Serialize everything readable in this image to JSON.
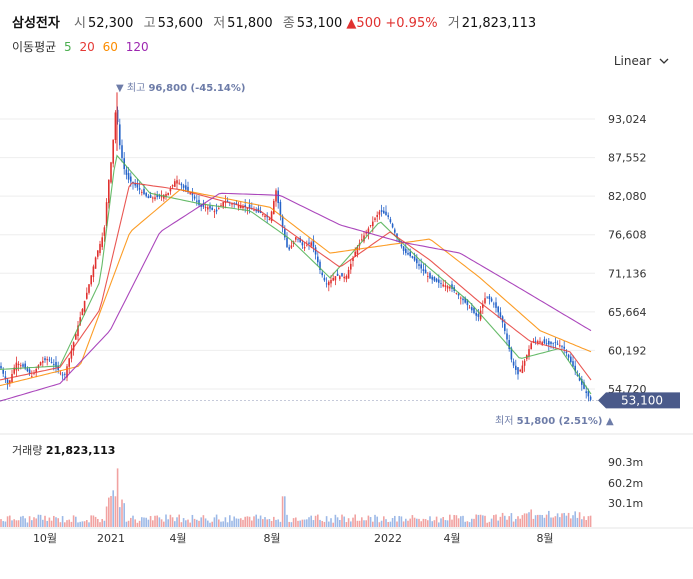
{
  "header": {
    "name": "삼성전자",
    "open_label": "시",
    "open": "52,300",
    "high_label": "고",
    "high": "53,600",
    "low_label": "저",
    "low": "51,800",
    "close_label": "종",
    "close": "53,100",
    "change": "▲500",
    "change_pct": "+0.95%",
    "volume_label": "거",
    "volume": "21,823,113"
  },
  "ma_legend": {
    "label": "이동평균",
    "p1": "5",
    "p2": "20",
    "p3": "60",
    "p4": "120"
  },
  "scale_mode": "Linear",
  "colors": {
    "up": "#e0312f",
    "down": "#2563c9",
    "ma5": "#4caf50",
    "ma20": "#e53935",
    "ma60": "#fb8c00",
    "ma120": "#9c27b0",
    "current_price_bg": "#4a5a8a"
  },
  "chart_data": {
    "type": "candlestick",
    "price_axis": {
      "ticks": [
        93024,
        87552,
        82080,
        76608,
        71136,
        65664,
        60192,
        54720
      ],
      "tick_labels": [
        "93,024",
        "87,552",
        "82,080",
        "76,608",
        "71,136",
        "65,664",
        "60,192",
        "54,720"
      ]
    },
    "x_axis": {
      "tick_labels": [
        "10월",
        "2021",
        "4월",
        "8월",
        "2022",
        "4월",
        "8월"
      ]
    },
    "close_path": [
      [
        0,
        58000
      ],
      [
        8,
        55200
      ],
      [
        16,
        58500
      ],
      [
        24,
        57800
      ],
      [
        32,
        56500
      ],
      [
        40,
        58500
      ],
      [
        48,
        59000
      ],
      [
        56,
        57800
      ],
      [
        64,
        56400
      ],
      [
        72,
        60500
      ],
      [
        80,
        64800
      ],
      [
        88,
        69000
      ],
      [
        96,
        73600
      ],
      [
        104,
        77000
      ],
      [
        108,
        83500
      ],
      [
        112,
        88000
      ],
      [
        116,
        95000
      ],
      [
        120,
        89000
      ],
      [
        124,
        86000
      ],
      [
        128,
        84500
      ],
      [
        136,
        83500
      ],
      [
        148,
        81800
      ],
      [
        160,
        82000
      ],
      [
        168,
        82500
      ],
      [
        176,
        84500
      ],
      [
        184,
        83200
      ],
      [
        192,
        82300
      ],
      [
        200,
        80600
      ],
      [
        208,
        80500
      ],
      [
        216,
        79800
      ],
      [
        224,
        81400
      ],
      [
        232,
        81000
      ],
      [
        240,
        80800
      ],
      [
        250,
        80300
      ],
      [
        262,
        79600
      ],
      [
        270,
        78800
      ],
      [
        276,
        82900
      ],
      [
        282,
        78000
      ],
      [
        288,
        74200
      ],
      [
        296,
        76300
      ],
      [
        304,
        74800
      ],
      [
        312,
        75600
      ],
      [
        320,
        71600
      ],
      [
        326,
        69600
      ],
      [
        336,
        70800
      ],
      [
        346,
        70600
      ],
      [
        356,
        74500
      ],
      [
        364,
        76500
      ],
      [
        372,
        78300
      ],
      [
        380,
        80000
      ],
      [
        388,
        79200
      ],
      [
        396,
        76500
      ],
      [
        404,
        74200
      ],
      [
        412,
        73400
      ],
      [
        420,
        72000
      ],
      [
        430,
        70400
      ],
      [
        440,
        69700
      ],
      [
        450,
        69200
      ],
      [
        460,
        67800
      ],
      [
        470,
        66200
      ],
      [
        478,
        64800
      ],
      [
        486,
        68000
      ],
      [
        494,
        66800
      ],
      [
        502,
        64500
      ],
      [
        508,
        61200
      ],
      [
        512,
        58500
      ],
      [
        518,
        56800
      ],
      [
        524,
        58500
      ],
      [
        532,
        61500
      ],
      [
        540,
        61500
      ],
      [
        548,
        61000
      ],
      [
        556,
        61300
      ],
      [
        564,
        60500
      ],
      [
        572,
        58200
      ],
      [
        580,
        55800
      ],
      [
        586,
        54200
      ],
      [
        591,
        53100
      ]
    ],
    "ma5": [
      [
        0,
        57500
      ],
      [
        60,
        58000
      ],
      [
        100,
        70000
      ],
      [
        116,
        88000
      ],
      [
        150,
        82500
      ],
      [
        200,
        81000
      ],
      [
        250,
        80000
      ],
      [
        290,
        76000
      ],
      [
        330,
        70500
      ],
      [
        380,
        78500
      ],
      [
        420,
        73000
      ],
      [
        470,
        67000
      ],
      [
        520,
        59000
      ],
      [
        560,
        60500
      ],
      [
        591,
        54000
      ]
    ],
    "ma20": [
      [
        0,
        56000
      ],
      [
        60,
        57800
      ],
      [
        100,
        66000
      ],
      [
        130,
        84000
      ],
      [
        180,
        83000
      ],
      [
        260,
        80000
      ],
      [
        300,
        76000
      ],
      [
        340,
        72000
      ],
      [
        390,
        77000
      ],
      [
        430,
        73000
      ],
      [
        480,
        67000
      ],
      [
        530,
        61500
      ],
      [
        570,
        60000
      ],
      [
        591,
        56000
      ]
    ],
    "ma60": [
      [
        0,
        55200
      ],
      [
        80,
        58000
      ],
      [
        130,
        77000
      ],
      [
        180,
        83000
      ],
      [
        270,
        80500
      ],
      [
        330,
        74000
      ],
      [
        380,
        75000
      ],
      [
        430,
        76000
      ],
      [
        480,
        70500
      ],
      [
        540,
        63000
      ],
      [
        591,
        60000
      ]
    ],
    "ma120": [
      [
        0,
        53000
      ],
      [
        60,
        55500
      ],
      [
        110,
        63000
      ],
      [
        160,
        77000
      ],
      [
        220,
        82500
      ],
      [
        280,
        82200
      ],
      [
        340,
        78000
      ],
      [
        400,
        75600
      ],
      [
        460,
        74000
      ],
      [
        520,
        69000
      ],
      [
        591,
        63000
      ]
    ],
    "annotations": {
      "high": {
        "label": "▼ 최고",
        "value": "96,800",
        "pct": "(-45.14%)"
      },
      "low": {
        "label": "최저",
        "value": "51,800",
        "pct": "(2.51%) ▲"
      },
      "current_price": "53,100"
    },
    "volume": {
      "label": "거래량",
      "value": "21,823,113",
      "ticks": [
        "90.3m",
        "60.2m",
        "30.1m"
      ],
      "max": 90300000
    }
  }
}
